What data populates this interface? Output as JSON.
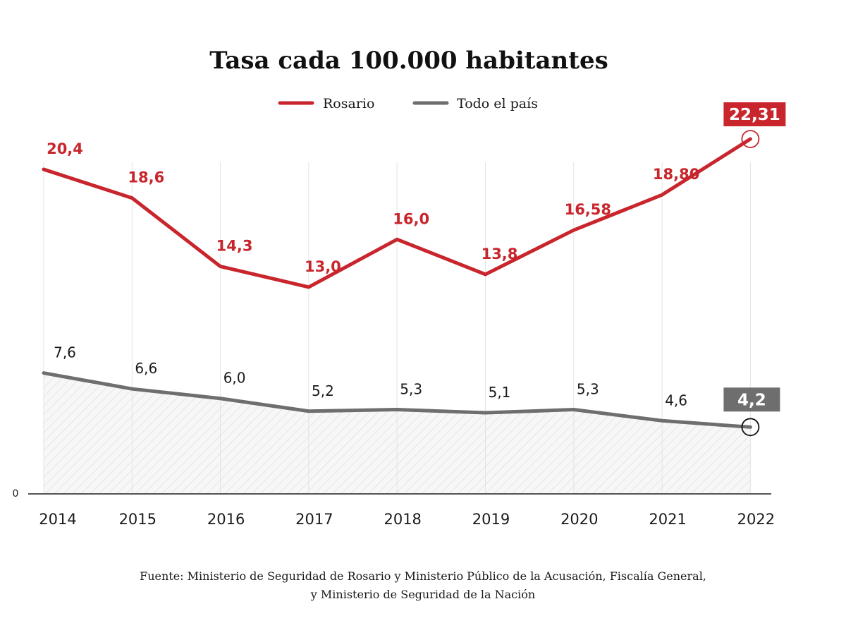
{
  "chart_data": {
    "type": "line",
    "title": "Tasa cada 100.000 habitantes",
    "categories": [
      "2014",
      "2015",
      "2016",
      "2017",
      "2018",
      "2019",
      "2020",
      "2021",
      "2022"
    ],
    "series": [
      {
        "name": "Rosario",
        "color": "#c8252c",
        "values": [
          20.4,
          18.6,
          14.3,
          13.0,
          16.0,
          13.8,
          16.58,
          18.8,
          22.31
        ],
        "labels": [
          "20,4",
          "18,6",
          "14,3",
          "13,0",
          "16,0",
          "13,8",
          "16,58",
          "18,80",
          "22,31"
        ]
      },
      {
        "name": "Todo el país",
        "color": "#6e6e6e",
        "values": [
          7.6,
          6.6,
          6.0,
          5.2,
          5.3,
          5.1,
          5.3,
          4.6,
          4.2
        ],
        "labels": [
          "7,6",
          "6,6",
          "6,0",
          "5,2",
          "5,3",
          "5,1",
          "5,3",
          "4,6",
          "4,2"
        ],
        "shaded": true
      }
    ],
    "y_tick_labels": [
      "0"
    ],
    "ylim": [
      0,
      23
    ],
    "grid": "vertical",
    "legend": "top-center",
    "highlight_last": true
  },
  "source": {
    "line1": "Fuente: Ministerio de Seguridad de Rosario y Ministerio Público de la Acusación, Fiscalía General,",
    "line2": "y Ministerio de Seguridad de la Nación"
  }
}
